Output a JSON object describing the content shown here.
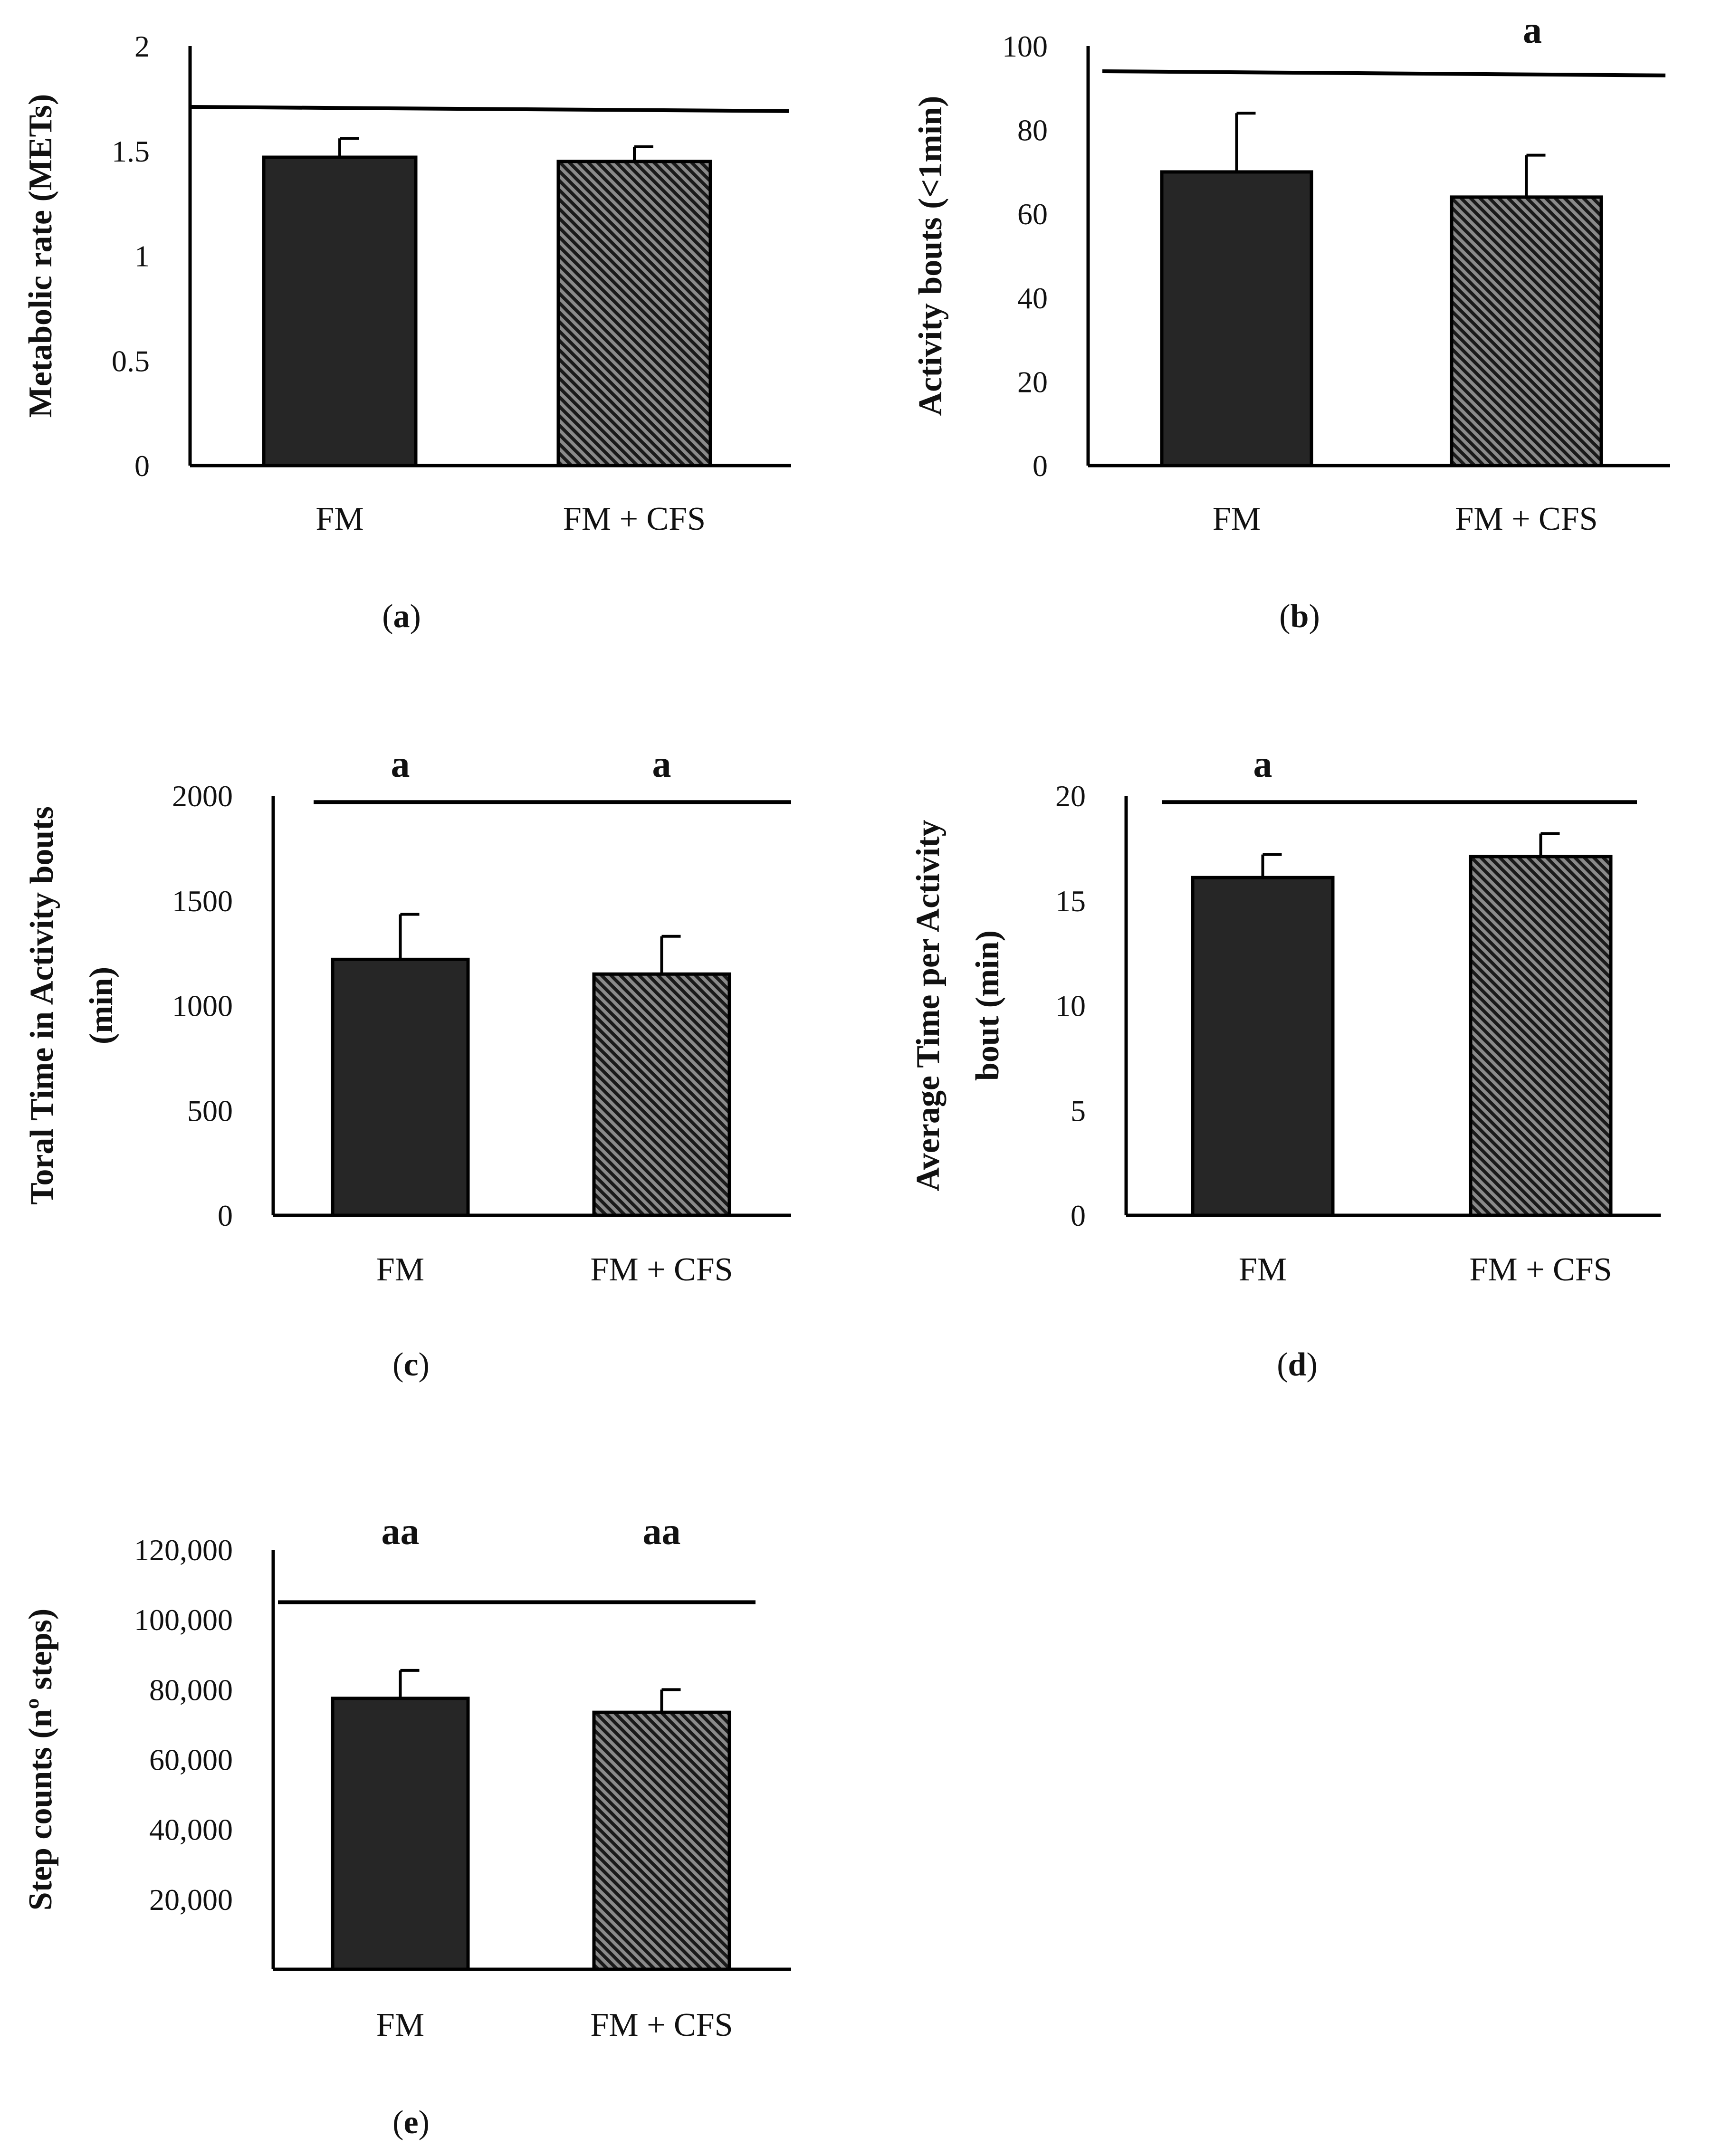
{
  "chart_data": [
    {
      "panel": "a",
      "caption": {
        "open": "(",
        "letter": "a",
        "close": ")"
      },
      "type": "bar",
      "categories": [
        "FM",
        "FM + CFS"
      ],
      "series": [
        {
          "name": "Metabolic rate (METs)",
          "values": [
            1.47,
            1.45
          ],
          "errors": [
            0.09,
            0.07
          ],
          "fills": [
            "solid",
            "hatch"
          ]
        }
      ],
      "ylabel": [
        "Metabolic rate (METs)"
      ],
      "yticks": [
        0,
        0.5,
        1,
        1.5,
        2
      ],
      "ytick_labels": [
        "0",
        "0.5",
        "1",
        "1.5",
        "2"
      ],
      "ylim": [
        0,
        2
      ],
      "reference_line": {
        "y_start": 1.71,
        "y_end": 1.69,
        "span": "full"
      },
      "significance": []
    },
    {
      "panel": "b",
      "caption": {
        "open": "(",
        "letter": "b",
        "close": ")"
      },
      "type": "bar",
      "categories": [
        "FM",
        "FM + CFS"
      ],
      "series": [
        {
          "name": "Activity bouts (<1min)",
          "values": [
            70,
            64
          ],
          "errors": [
            14,
            10
          ],
          "fills": [
            "solid",
            "hatch"
          ]
        }
      ],
      "ylabel": [
        "Activity bouts (<1min)"
      ],
      "yticks": [
        0,
        20,
        40,
        60,
        80,
        100
      ],
      "ytick_labels": [
        "0",
        "20",
        "40",
        "60",
        "80",
        "100"
      ],
      "ylim": [
        0,
        100
      ],
      "reference_line": {
        "y_start": 94,
        "y_end": 93,
        "span": "full"
      },
      "significance": [
        {
          "label": "a",
          "position": "right"
        }
      ]
    },
    {
      "panel": "c",
      "caption": {
        "open": "(",
        "letter": "c",
        "close": ")"
      },
      "type": "bar",
      "categories": [
        "FM",
        "FM + CFS"
      ],
      "series": [
        {
          "name": "Toral Time in Activity bouts (min)",
          "values": [
            1220,
            1150
          ],
          "errors": [
            215,
            180
          ],
          "fills": [
            "solid",
            "hatch"
          ]
        }
      ],
      "ylabel": [
        "Toral Time in Activity bouts",
        "(min)"
      ],
      "yticks": [
        0,
        500,
        1000,
        1500,
        2000
      ],
      "ytick_labels": [
        "0",
        "500",
        "1000",
        "1500",
        "2000"
      ],
      "ylim": [
        0,
        2000
      ],
      "reference_line": {
        "y_start": 1970,
        "y_end": 1970,
        "span": "inner"
      },
      "significance": [
        {
          "label": "a",
          "position": "bar0"
        },
        {
          "label": "a",
          "position": "bar1"
        }
      ]
    },
    {
      "panel": "d",
      "caption": {
        "open": "(",
        "letter": "d",
        "close": ")"
      },
      "type": "bar",
      "categories": [
        "FM",
        "FM + CFS"
      ],
      "series": [
        {
          "name": "Average Time per Activity bout (min)",
          "values": [
            16.1,
            17.1
          ],
          "errors": [
            1.1,
            1.1
          ],
          "fills": [
            "solid",
            "hatch"
          ]
        }
      ],
      "ylabel": [
        "Average  Time per Activity",
        "bout (min)"
      ],
      "yticks": [
        0,
        5,
        10,
        15,
        20
      ],
      "ytick_labels": [
        "0",
        "5",
        "10",
        "15",
        "20"
      ],
      "ylim": [
        0,
        20
      ],
      "reference_line": {
        "y_start": 19.7,
        "y_end": 19.7,
        "span": "inner"
      },
      "significance": [
        {
          "label": "a",
          "position": "bar0"
        }
      ]
    },
    {
      "panel": "e",
      "caption": {
        "open": "(",
        "letter": "e",
        "close": ")"
      },
      "type": "bar",
      "categories": [
        "FM",
        "FM + CFS"
      ],
      "series": [
        {
          "name": "Step counts (nº steps)",
          "values": [
            77500,
            73500
          ],
          "errors": [
            8000,
            6500
          ],
          "fills": [
            "solid",
            "hatch"
          ]
        }
      ],
      "ylabel": [
        "Step counts (nº steps)"
      ],
      "yticks": [
        20000,
        40000,
        60000,
        80000,
        100000,
        120000
      ],
      "ytick_labels": [
        "20,000",
        "40,000",
        "60,000",
        "80,000",
        "100,000",
        "120,000"
      ],
      "ylim": [
        0,
        120000
      ],
      "reference_line": {
        "y_start": 105000,
        "y_end": 105000,
        "span": "inner"
      },
      "significance": [
        {
          "label": "aa",
          "position": "bar0"
        },
        {
          "label": "aa",
          "position": "bar1"
        }
      ]
    }
  ],
  "colors": {
    "bar_fm": "#262626",
    "hatch_dark": "#1a1a1a",
    "hatch_light": "#8a8a8a",
    "axis": "#000000"
  }
}
